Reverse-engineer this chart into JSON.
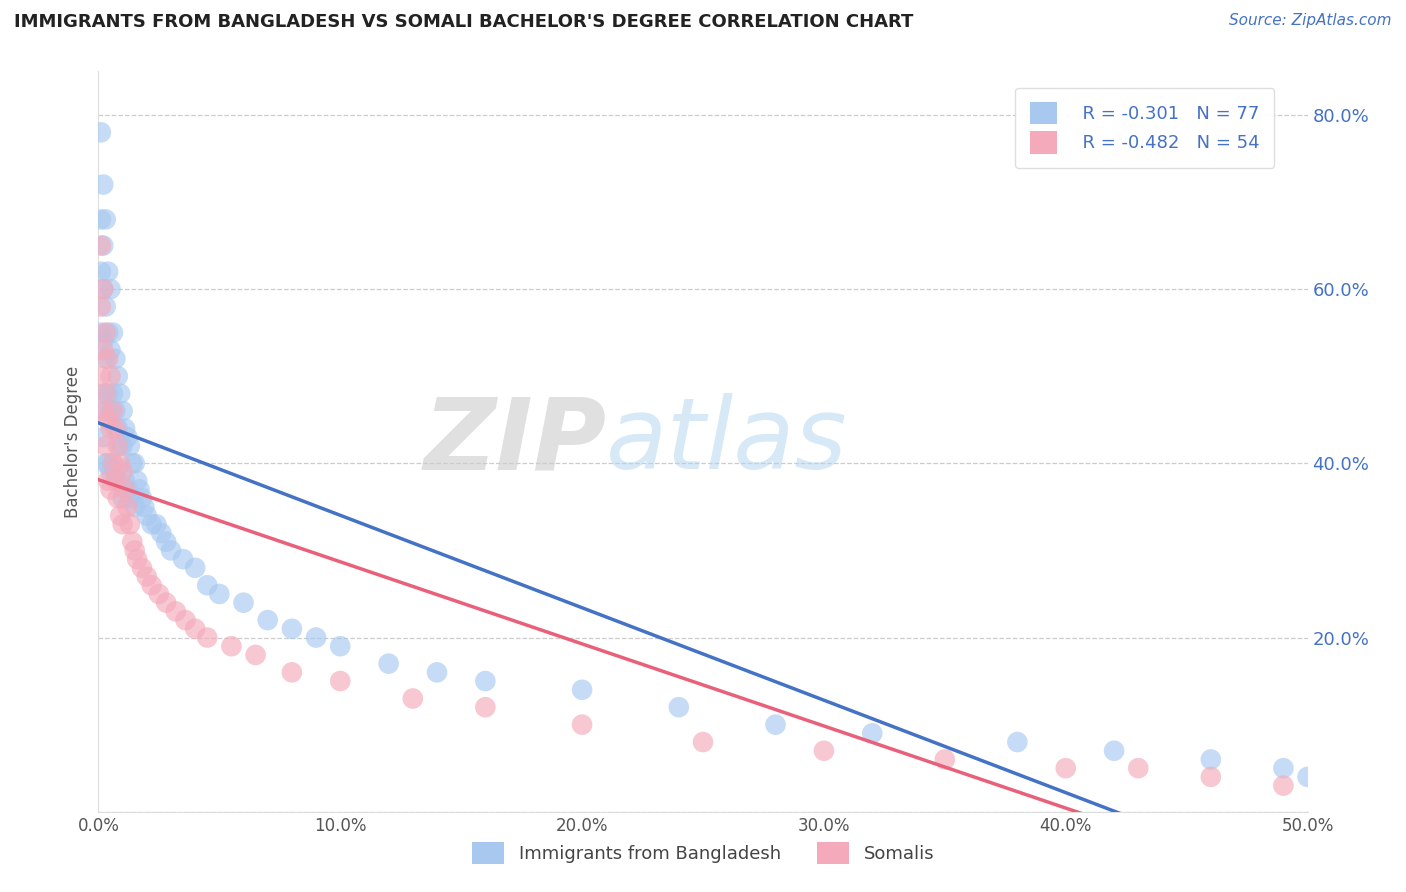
{
  "title": "IMMIGRANTS FROM BANGLADESH VS SOMALI BACHELOR'S DEGREE CORRELATION CHART",
  "source_text": "Source: ZipAtlas.com",
  "ylabel": "Bachelor's Degree",
  "xlabel_blue": "Immigrants from Bangladesh",
  "xlabel_pink": "Somalis",
  "watermark": "ZIPatlas",
  "xlim": [
    0.0,
    0.5
  ],
  "ylim": [
    0.0,
    0.85
  ],
  "xticks": [
    0.0,
    0.1,
    0.2,
    0.3,
    0.4,
    0.5
  ],
  "xticklabels": [
    "0.0%",
    "10.0%",
    "20.0%",
    "30.0%",
    "40.0%",
    "50.0%"
  ],
  "yticks": [
    0.0,
    0.2,
    0.4,
    0.6,
    0.8
  ],
  "yticklabels": [
    "0.0%",
    "20.0%",
    "40.0%",
    "60.0%",
    "80.0%"
  ],
  "right_ytick_vals": [
    0.8,
    0.6,
    0.4,
    0.2
  ],
  "right_ytick_labels": [
    "80.0%",
    "60.0%",
    "40.0%",
    "20.0%"
  ],
  "blue_R": -0.301,
  "blue_N": 77,
  "pink_R": -0.482,
  "pink_N": 54,
  "blue_color": "#A8C8F0",
  "pink_color": "#F4AABB",
  "blue_line_color": "#4472C4",
  "pink_line_color": "#E8607A",
  "blue_scatter_x": [
    0.001,
    0.001,
    0.001,
    0.001,
    0.002,
    0.002,
    0.002,
    0.002,
    0.002,
    0.002,
    0.003,
    0.003,
    0.003,
    0.003,
    0.003,
    0.004,
    0.004,
    0.004,
    0.004,
    0.005,
    0.005,
    0.005,
    0.005,
    0.006,
    0.006,
    0.006,
    0.007,
    0.007,
    0.007,
    0.008,
    0.008,
    0.008,
    0.009,
    0.009,
    0.01,
    0.01,
    0.01,
    0.011,
    0.011,
    0.012,
    0.012,
    0.013,
    0.013,
    0.014,
    0.015,
    0.015,
    0.016,
    0.017,
    0.018,
    0.019,
    0.02,
    0.022,
    0.024,
    0.026,
    0.028,
    0.03,
    0.035,
    0.04,
    0.045,
    0.05,
    0.06,
    0.07,
    0.08,
    0.09,
    0.1,
    0.12,
    0.14,
    0.16,
    0.2,
    0.24,
    0.28,
    0.32,
    0.38,
    0.42,
    0.46,
    0.49,
    0.5
  ],
  "blue_scatter_y": [
    0.78,
    0.68,
    0.62,
    0.55,
    0.72,
    0.65,
    0.6,
    0.54,
    0.48,
    0.43,
    0.68,
    0.58,
    0.52,
    0.46,
    0.4,
    0.62,
    0.55,
    0.48,
    0.4,
    0.6,
    0.53,
    0.46,
    0.39,
    0.55,
    0.48,
    0.4,
    0.52,
    0.46,
    0.39,
    0.5,
    0.44,
    0.38,
    0.48,
    0.42,
    0.46,
    0.42,
    0.36,
    0.44,
    0.38,
    0.43,
    0.37,
    0.42,
    0.36,
    0.4,
    0.4,
    0.35,
    0.38,
    0.37,
    0.36,
    0.35,
    0.34,
    0.33,
    0.33,
    0.32,
    0.31,
    0.3,
    0.29,
    0.28,
    0.26,
    0.25,
    0.24,
    0.22,
    0.21,
    0.2,
    0.19,
    0.17,
    0.16,
    0.15,
    0.14,
    0.12,
    0.1,
    0.09,
    0.08,
    0.07,
    0.06,
    0.05,
    0.04
  ],
  "pink_scatter_x": [
    0.001,
    0.001,
    0.001,
    0.002,
    0.002,
    0.002,
    0.003,
    0.003,
    0.003,
    0.004,
    0.004,
    0.004,
    0.005,
    0.005,
    0.005,
    0.006,
    0.006,
    0.007,
    0.007,
    0.008,
    0.008,
    0.009,
    0.009,
    0.01,
    0.01,
    0.011,
    0.012,
    0.013,
    0.014,
    0.015,
    0.016,
    0.018,
    0.02,
    0.022,
    0.025,
    0.028,
    0.032,
    0.036,
    0.04,
    0.045,
    0.055,
    0.065,
    0.08,
    0.1,
    0.13,
    0.16,
    0.2,
    0.25,
    0.3,
    0.35,
    0.4,
    0.43,
    0.46,
    0.49
  ],
  "pink_scatter_y": [
    0.65,
    0.58,
    0.5,
    0.6,
    0.53,
    0.46,
    0.55,
    0.48,
    0.42,
    0.52,
    0.45,
    0.38,
    0.5,
    0.44,
    0.37,
    0.46,
    0.4,
    0.44,
    0.38,
    0.42,
    0.36,
    0.4,
    0.34,
    0.39,
    0.33,
    0.37,
    0.35,
    0.33,
    0.31,
    0.3,
    0.29,
    0.28,
    0.27,
    0.26,
    0.25,
    0.24,
    0.23,
    0.22,
    0.21,
    0.2,
    0.19,
    0.18,
    0.16,
    0.15,
    0.13,
    0.12,
    0.1,
    0.08,
    0.07,
    0.06,
    0.05,
    0.05,
    0.04,
    0.03
  ],
  "figsize": [
    14.06,
    8.92
  ],
  "dpi": 100
}
